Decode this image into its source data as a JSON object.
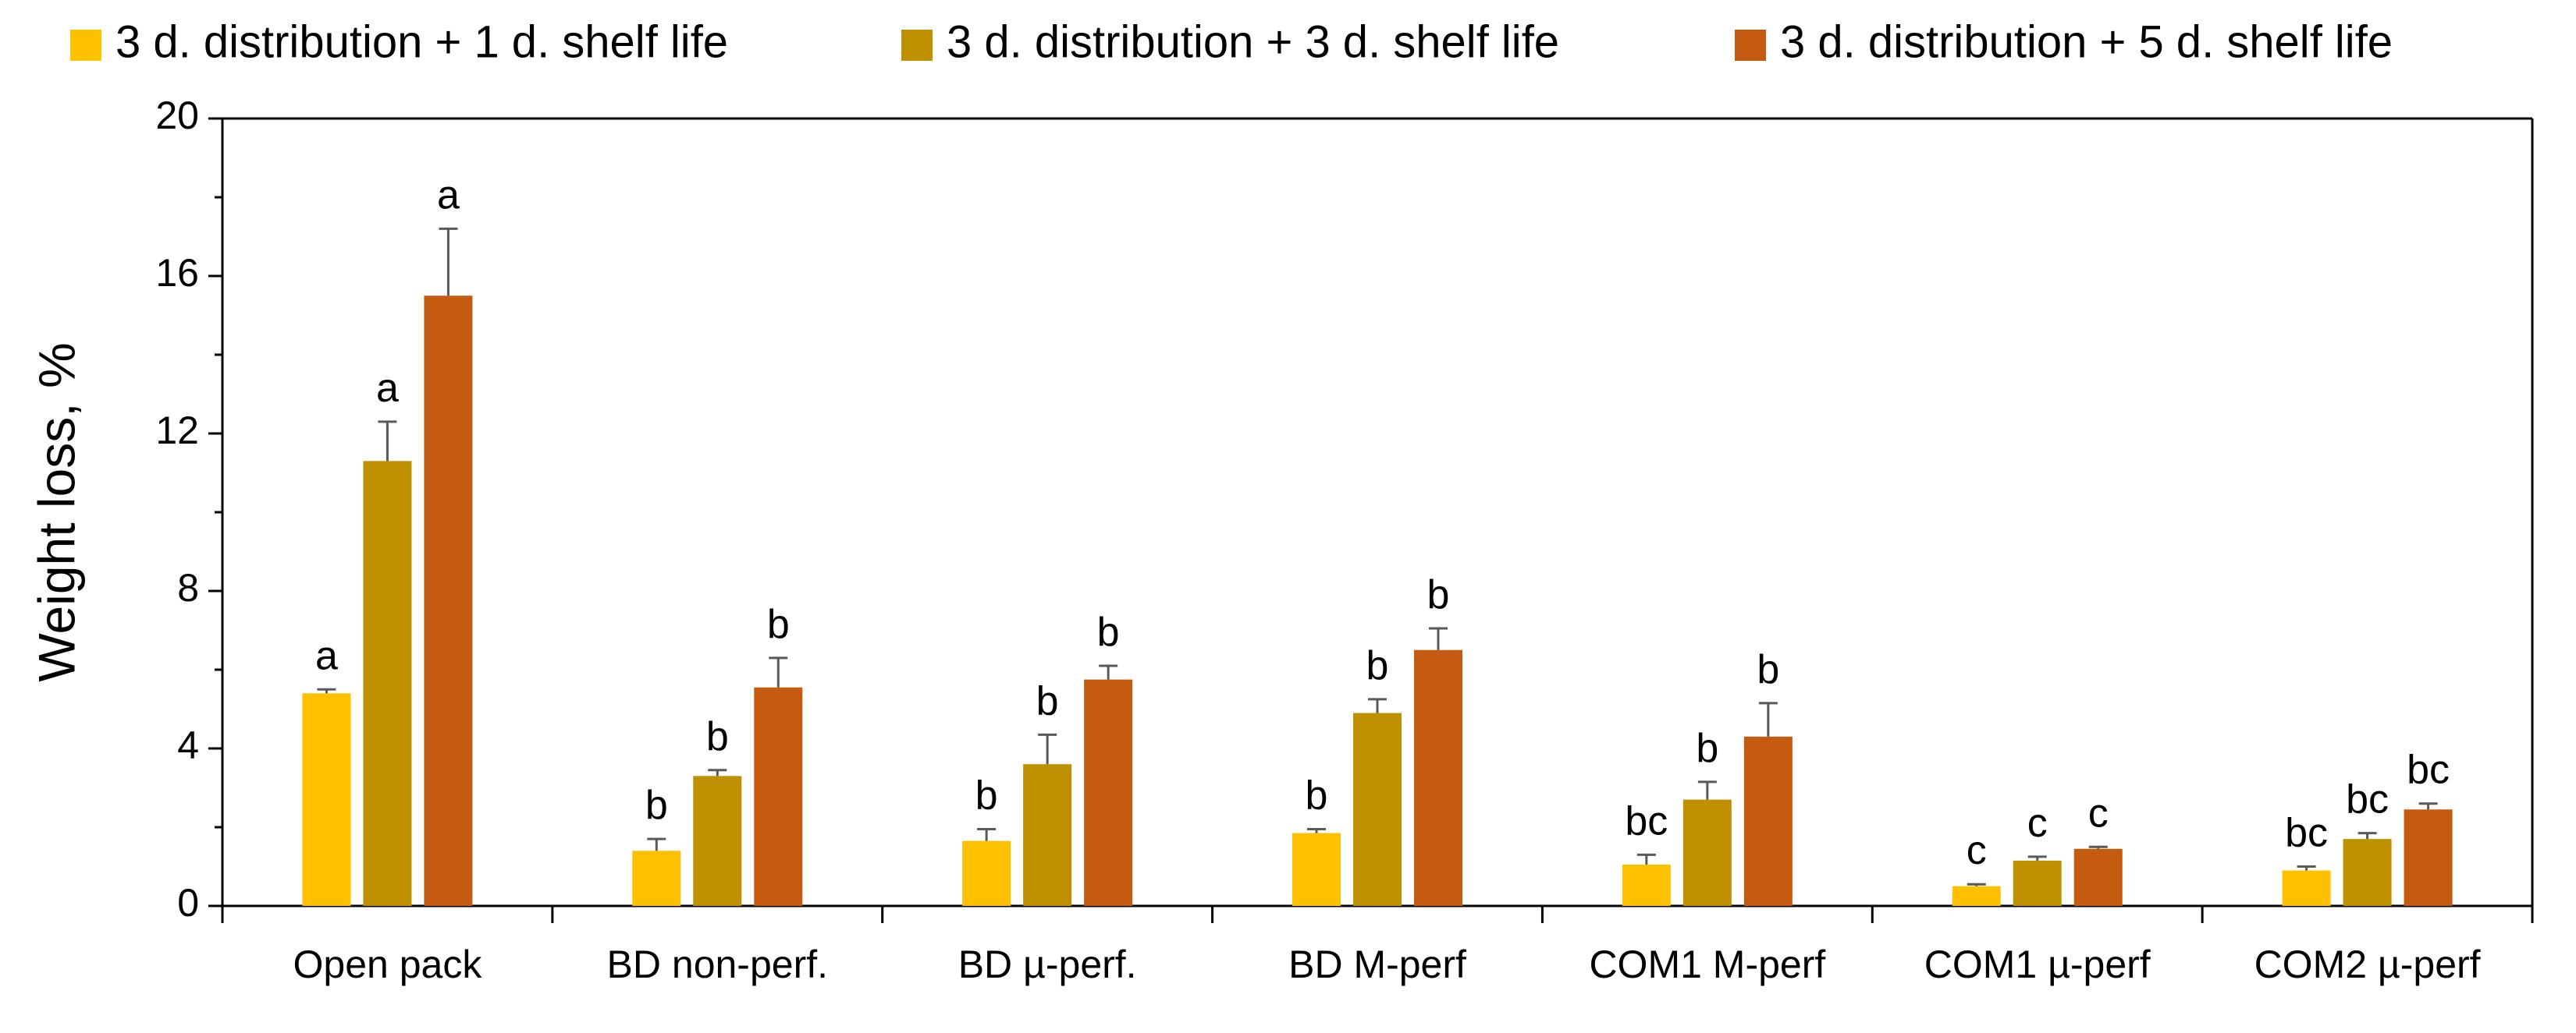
{
  "chart_data": {
    "type": "bar",
    "title": "",
    "xlabel": "",
    "ylabel": "Weight loss, %",
    "ylim": [
      0,
      20
    ],
    "yticks": [
      0,
      4,
      8,
      12,
      16,
      20
    ],
    "grid": false,
    "legend_position": "top",
    "categories": [
      "Open pack",
      "BD non-perf.",
      "BD µ-perf.",
      "BD M-perf",
      "COM1 M-perf",
      "COM1 µ-perf",
      "COM2 µ-perf"
    ],
    "series": [
      {
        "name": "3 d. distribution + 1 d. shelf life",
        "color": "#FFC000",
        "values": [
          5.4,
          1.4,
          1.65,
          1.85,
          1.05,
          0.5,
          0.9
        ],
        "errors": [
          0.1,
          0.3,
          0.3,
          0.1,
          0.25,
          0.05,
          0.1
        ],
        "significance": [
          "a",
          "b",
          "b",
          "b",
          "bc",
          "c",
          "bc"
        ]
      },
      {
        "name": "3 d. distribution + 3 d. shelf life",
        "color": "#BF9000",
        "values": [
          11.3,
          3.3,
          3.6,
          4.9,
          2.7,
          1.15,
          1.7
        ],
        "errors": [
          1.0,
          0.15,
          0.75,
          0.35,
          0.45,
          0.1,
          0.15
        ],
        "significance": [
          "a",
          "b",
          "b",
          "b",
          "b",
          "c",
          "bc"
        ]
      },
      {
        "name": "3 d. distribution + 5 d. shelf life",
        "color": "#C55A11",
        "values": [
          15.5,
          5.55,
          5.75,
          6.5,
          4.3,
          1.45,
          2.45
        ],
        "errors": [
          1.7,
          0.75,
          0.35,
          0.55,
          0.85,
          0.05,
          0.15
        ],
        "significance": [
          "a",
          "b",
          "b",
          "b",
          "b",
          "c",
          "bc"
        ]
      }
    ]
  }
}
